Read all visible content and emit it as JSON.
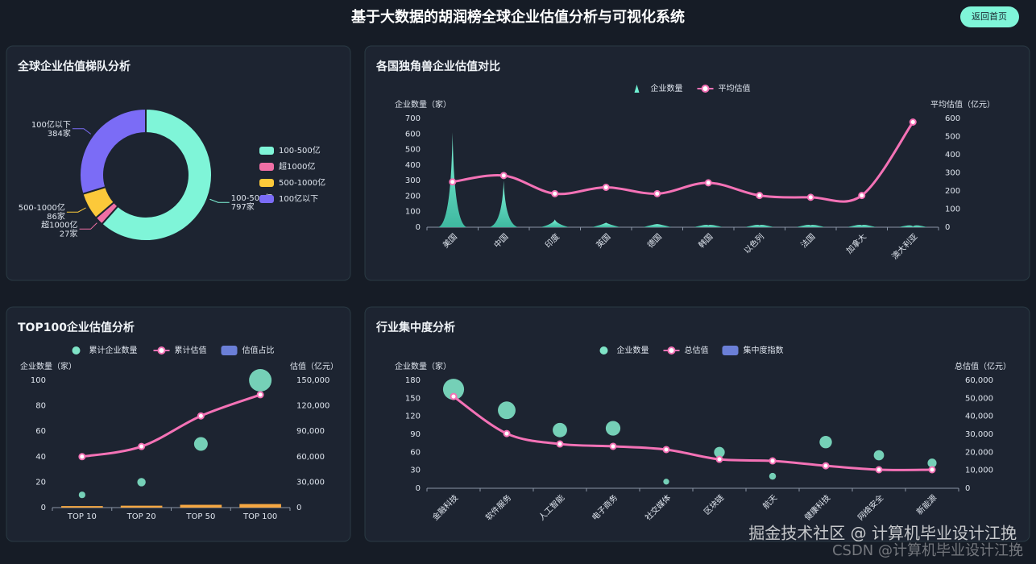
{
  "header": {
    "title": "基于大数据的胡润榜全球企业估值分析与可视化系统",
    "button": "返回首页"
  },
  "chart_data": [
    {
      "type": "pie",
      "title": "全球企业估值梯队分析",
      "categories": [
        "100-500亿",
        "超1000亿",
        "500-1000亿",
        "100亿以下"
      ],
      "values": [
        797,
        27,
        86,
        384
      ],
      "value_labels": [
        "797家",
        "27家",
        "86家",
        "384家"
      ],
      "colors": [
        "#7ff5d8",
        "#f06fa5",
        "#fcc93a",
        "#7b6cf6"
      ]
    },
    {
      "type": "combo",
      "title": "各国独角兽企业估值对比",
      "categories": [
        "美国",
        "中国",
        "印度",
        "英国",
        "德国",
        "韩国",
        "以色列",
        "法国",
        "加拿大",
        "澳大利亚"
      ],
      "ylabel": "企业数量（家）",
      "y2label": "平均估值（亿元）",
      "ylim": [
        0,
        700
      ],
      "yticks": [
        0,
        100,
        200,
        300,
        400,
        500,
        600,
        700
      ],
      "y2lim": [
        0,
        600
      ],
      "y2ticks": [
        0,
        100,
        200,
        300,
        400,
        500,
        600
      ],
      "xlabel_rotation": 45,
      "series": [
        {
          "name": "企业数量",
          "kind": "spike",
          "color": "#6ff0d2",
          "values": [
            610,
            300,
            50,
            30,
            20,
            12,
            12,
            12,
            12,
            5
          ]
        },
        {
          "name": "平均估值",
          "kind": "line",
          "axis": "y2",
          "color": "#f472b6",
          "values": [
            250,
            285,
            185,
            220,
            185,
            245,
            175,
            165,
            175,
            580
          ]
        }
      ]
    },
    {
      "type": "combo",
      "title": "TOP100企业估值分析",
      "categories": [
        "TOP 10",
        "TOP 20",
        "TOP 50",
        "TOP 100"
      ],
      "ylabel": "企业数量（家）",
      "y2label": "估值（亿元）",
      "ylim": [
        0,
        100
      ],
      "yticks": [
        0,
        20,
        40,
        60,
        80,
        100
      ],
      "y2lim": [
        0,
        150000
      ],
      "y2ticks": [
        0,
        {
          "value": 30000,
          "label": "30,000"
        },
        {
          "value": 60000,
          "label": "60,000"
        },
        {
          "value": 90000,
          "label": "90,000"
        },
        {
          "value": 120000,
          "label": "120,000"
        },
        {
          "value": 150000,
          "label": "150,000"
        }
      ],
      "xlabel_rotation": 0,
      "series": [
        {
          "name": "累计企业数量",
          "kind": "scatter",
          "color": "#7fe3c6",
          "values": [
            10,
            20,
            50,
            100
          ]
        },
        {
          "name": "累计估值",
          "kind": "line",
          "axis": "y2",
          "color": "#f472b6",
          "values": [
            60000,
            72000,
            108000,
            133000
          ]
        },
        {
          "name": "估值占比",
          "kind": "bar",
          "color": "#f5a742",
          "legend_color": "#6b7fd7",
          "values": [
            1.2,
            1.5,
            2.2,
            2.8
          ]
        }
      ]
    },
    {
      "type": "combo",
      "title": "行业集中度分析",
      "categories": [
        "金融科技",
        "软件服务",
        "人工智能",
        "电子商务",
        "社交媒体",
        "区块链",
        "航天",
        "健康科技",
        "网络安全",
        "新能源"
      ],
      "ylabel": "企业数量（家）",
      "y2label": "总估值（亿元）",
      "ylim": [
        0,
        180
      ],
      "yticks": [
        0,
        30,
        60,
        90,
        120,
        150,
        180
      ],
      "y2lim": [
        0,
        60000
      ],
      "y2ticks": [
        0,
        {
          "value": 10000,
          "label": "10,000"
        },
        {
          "value": 20000,
          "label": "20,000"
        },
        {
          "value": 30000,
          "label": "30,000"
        },
        {
          "value": 40000,
          "label": "40,000"
        },
        {
          "value": 50000,
          "label": "50,000"
        },
        {
          "value": 60000,
          "label": "60,000"
        }
      ],
      "xlabel_rotation": 45,
      "series": [
        {
          "name": "企业数量",
          "kind": "scatter",
          "color": "#7fe3c6",
          "values": [
            165,
            130,
            97,
            100,
            11,
            60,
            20,
            77,
            55,
            42
          ]
        },
        {
          "name": "总估值",
          "kind": "line",
          "axis": "y2",
          "color": "#f472b6",
          "values": [
            51000,
            30400,
            24600,
            23300,
            21500,
            16100,
            15200,
            12500,
            10300,
            10300
          ]
        },
        {
          "name": "集中度指数",
          "kind": "bar",
          "color": "#6b7fd7",
          "values": [
            null,
            null,
            null,
            null,
            null,
            null,
            null,
            null,
            null,
            null
          ]
        }
      ]
    }
  ],
  "watermark": {
    "line1": "掘金技术社区 @ 计算机毕业设计江挽",
    "line2": "CSDN @计算机毕业设计江挽"
  }
}
